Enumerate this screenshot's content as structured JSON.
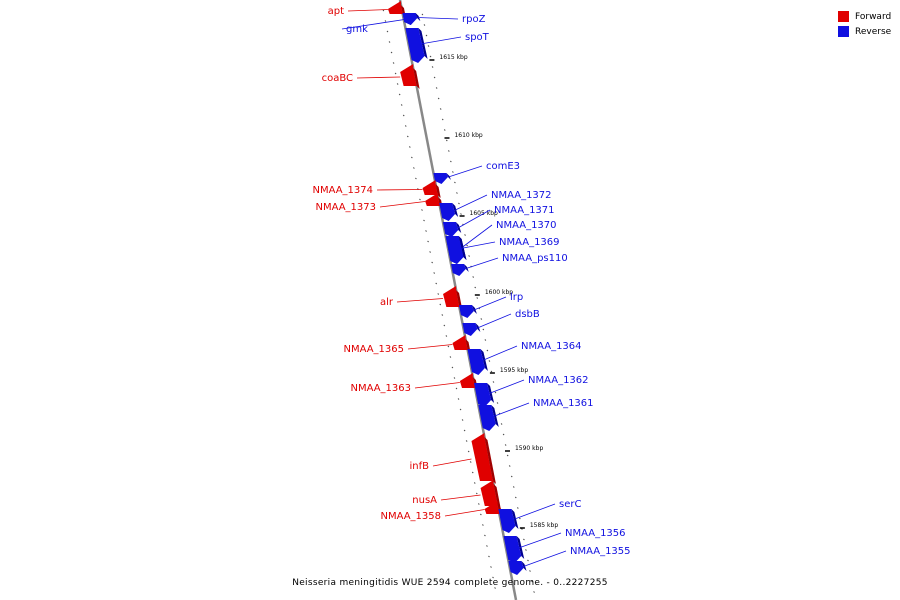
{
  "legend": [
    {
      "label": "Forward",
      "color": "#e00000"
    },
    {
      "label": "Reverse",
      "color": "#1010e0"
    }
  ],
  "caption": "Neisseria meningitidis WUE 2594 complete genome. - 0..2227255",
  "colors": {
    "forward": "#e00000",
    "forward_dark": "#a00000",
    "reverse": "#1010e0",
    "reverse_dark": "#000090",
    "backbone": "#888888"
  },
  "scale_ticks": [
    {
      "label": "1615 kbp",
      "kbp": 1615
    },
    {
      "label": "1610 kbp",
      "kbp": 1610
    },
    {
      "label": "1605 kbp",
      "kbp": 1605
    },
    {
      "label": "1600 kbp",
      "kbp": 1600
    },
    {
      "label": "1595 kbp",
      "kbp": 1595
    },
    {
      "label": "1590 kbp",
      "kbp": 1590
    },
    {
      "label": "1585 kbp",
      "kbp": 1585
    }
  ],
  "genes": [
    {
      "name": "apt",
      "strand": "forward"
    },
    {
      "name": "gmk",
      "strand": "reverse"
    },
    {
      "name": "rpoZ",
      "strand": "reverse"
    },
    {
      "name": "spoT",
      "strand": "reverse"
    },
    {
      "name": "coaBC",
      "strand": "forward"
    },
    {
      "name": "comE3",
      "strand": "reverse"
    },
    {
      "name": "NMAA_1374",
      "strand": "forward"
    },
    {
      "name": "NMAA_1373",
      "strand": "forward"
    },
    {
      "name": "NMAA_1372",
      "strand": "reverse"
    },
    {
      "name": "NMAA_1371",
      "strand": "reverse"
    },
    {
      "name": "NMAA_1370",
      "strand": "reverse"
    },
    {
      "name": "NMAA_1369",
      "strand": "reverse"
    },
    {
      "name": "NMAA_ps110",
      "strand": "reverse"
    },
    {
      "name": "alr",
      "strand": "forward"
    },
    {
      "name": "lrp",
      "strand": "reverse"
    },
    {
      "name": "dsbB",
      "strand": "reverse"
    },
    {
      "name": "NMAA_1365",
      "strand": "forward"
    },
    {
      "name": "NMAA_1364",
      "strand": "reverse"
    },
    {
      "name": "NMAA_1363",
      "strand": "forward"
    },
    {
      "name": "NMAA_1362",
      "strand": "reverse"
    },
    {
      "name": "NMAA_1361",
      "strand": "reverse"
    },
    {
      "name": "infB",
      "strand": "forward"
    },
    {
      "name": "nusA",
      "strand": "forward"
    },
    {
      "name": "NMAA_1358",
      "strand": "forward"
    },
    {
      "name": "serC",
      "strand": "reverse"
    },
    {
      "name": "NMAA_1356",
      "strand": "reverse"
    },
    {
      "name": "NMAA_1355",
      "strand": "reverse"
    }
  ]
}
